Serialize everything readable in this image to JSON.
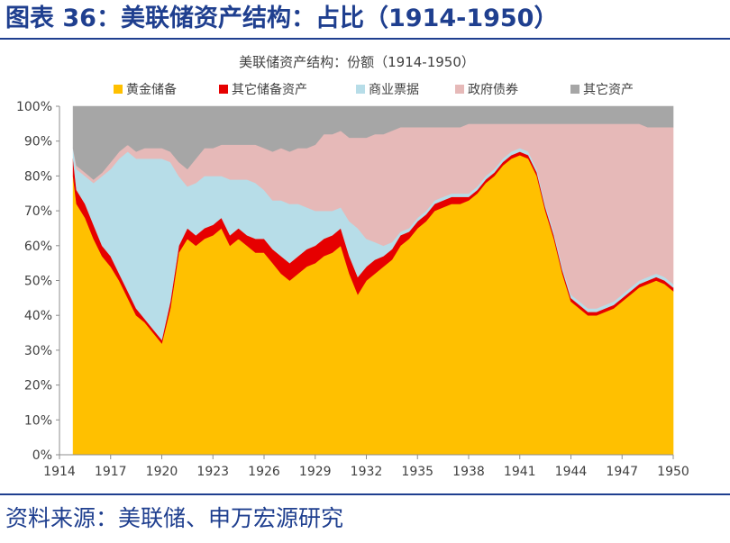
{
  "figure": {
    "title": "图表 36：美联储资产结构：占比（1914-1950）",
    "source": "资料来源：美联储、申万宏源研究"
  },
  "chart_data": {
    "type": "area",
    "stacked": true,
    "title": "美联储资产结构：份额（1914-1950）",
    "xlabel": "",
    "ylabel": "",
    "xlim": [
      1914,
      1950
    ],
    "ylim": [
      0,
      100
    ],
    "x_ticks": [
      "1914",
      "1917",
      "1920",
      "1923",
      "1926",
      "1929",
      "1932",
      "1935",
      "1938",
      "1941",
      "1944",
      "1947",
      "1950"
    ],
    "y_ticks": [
      "0%",
      "10%",
      "20%",
      "30%",
      "40%",
      "50%",
      "60%",
      "70%",
      "80%",
      "90%",
      "100%"
    ],
    "legend_position": "top",
    "grid": false,
    "x": [
      1914.8,
      1915.0,
      1915.5,
      1916.0,
      1916.5,
      1917.0,
      1917.5,
      1918.0,
      1918.5,
      1919.0,
      1919.5,
      1920.0,
      1920.5,
      1921.0,
      1921.5,
      1922.0,
      1922.5,
      1923.0,
      1923.5,
      1924.0,
      1924.5,
      1925.0,
      1925.5,
      1926.0,
      1926.5,
      1927.0,
      1927.5,
      1928.0,
      1928.5,
      1929.0,
      1929.5,
      1930.0,
      1930.5,
      1931.0,
      1931.5,
      1932.0,
      1932.5,
      1933.0,
      1933.5,
      1934.0,
      1934.5,
      1935.0,
      1935.5,
      1936.0,
      1936.5,
      1937.0,
      1937.5,
      1938.0,
      1938.5,
      1939.0,
      1939.5,
      1940.0,
      1940.5,
      1941.0,
      1941.5,
      1942.0,
      1942.5,
      1943.0,
      1943.5,
      1944.0,
      1944.5,
      1945.0,
      1945.5,
      1946.0,
      1946.5,
      1947.0,
      1947.5,
      1948.0,
      1948.5,
      1949.0,
      1949.5,
      1950.0
    ],
    "series": [
      {
        "name": "黄金储备",
        "color": "#ffc000",
        "values": [
          80,
          72,
          68,
          62,
          57,
          54,
          50,
          45,
          40,
          38,
          35,
          32,
          42,
          58,
          62,
          60,
          62,
          63,
          65,
          60,
          62,
          60,
          58,
          58,
          55,
          52,
          50,
          52,
          54,
          55,
          57,
          58,
          60,
          52,
          46,
          50,
          52,
          54,
          56,
          60,
          62,
          65,
          67,
          70,
          71,
          72,
          72,
          73,
          75,
          78,
          80,
          83,
          85,
          86,
          85,
          80,
          70,
          62,
          52,
          44,
          42,
          40,
          40,
          41,
          42,
          44,
          46,
          48,
          49,
          50,
          49,
          47
        ]
      },
      {
        "name": "其它储备资产",
        "color": "#e60000",
        "values": [
          5,
          4,
          4,
          4,
          3,
          3,
          2,
          2,
          2,
          1,
          1,
          1,
          2,
          2,
          3,
          3,
          3,
          3,
          3,
          3,
          3,
          3,
          4,
          4,
          4,
          5,
          5,
          5,
          5,
          5,
          5,
          5,
          5,
          5,
          5,
          4,
          4,
          3,
          3,
          3,
          2,
          2,
          2,
          2,
          2,
          2,
          2,
          1,
          1,
          1,
          1,
          1,
          1,
          1,
          1,
          1,
          1,
          1,
          1,
          1,
          1,
          1,
          1,
          1,
          1,
          1,
          1,
          1,
          1,
          1,
          1,
          1
        ]
      },
      {
        "name": "商业票据",
        "color": "#b7dde8",
        "values": [
          3,
          6,
          8,
          12,
          20,
          25,
          33,
          40,
          43,
          46,
          49,
          52,
          40,
          20,
          12,
          15,
          15,
          14,
          12,
          16,
          14,
          16,
          16,
          14,
          14,
          16,
          17,
          15,
          12,
          10,
          8,
          7,
          6,
          10,
          14,
          8,
          5,
          3,
          2,
          1,
          1,
          1,
          1,
          1,
          1,
          1,
          1,
          1,
          1,
          1,
          1,
          1,
          1,
          1,
          1,
          1,
          1,
          1,
          1,
          1,
          1,
          1,
          1,
          1,
          1,
          1,
          1,
          1,
          1,
          1,
          1,
          1
        ]
      },
      {
        "name": "政府债券",
        "color": "#e6b9b8",
        "values": [
          0,
          1,
          1,
          1,
          1,
          2,
          2,
          2,
          2,
          3,
          3,
          3,
          3,
          4,
          5,
          7,
          8,
          8,
          9,
          10,
          10,
          10,
          11,
          12,
          14,
          15,
          15,
          16,
          17,
          19,
          22,
          22,
          22,
          24,
          26,
          29,
          31,
          32,
          32,
          30,
          29,
          26,
          24,
          21,
          20,
          19,
          19,
          20,
          18,
          15,
          13,
          10,
          8,
          7,
          8,
          13,
          23,
          31,
          41,
          49,
          51,
          53,
          53,
          52,
          51,
          49,
          47,
          45,
          43,
          42,
          43,
          45
        ]
      },
      {
        "name": "其它资产",
        "color": "#a6a6a6",
        "values": [
          12,
          17,
          19,
          21,
          19,
          16,
          13,
          11,
          13,
          12,
          12,
          12,
          13,
          16,
          18,
          15,
          12,
          12,
          11,
          11,
          11,
          11,
          11,
          12,
          13,
          12,
          13,
          12,
          12,
          11,
          8,
          8,
          7,
          9,
          9,
          9,
          8,
          8,
          7,
          6,
          6,
          6,
          6,
          6,
          6,
          6,
          6,
          5,
          5,
          5,
          5,
          5,
          5,
          5,
          5,
          5,
          5,
          5,
          5,
          5,
          5,
          5,
          5,
          5,
          5,
          5,
          5,
          5,
          6,
          6,
          6,
          6
        ]
      }
    ]
  }
}
